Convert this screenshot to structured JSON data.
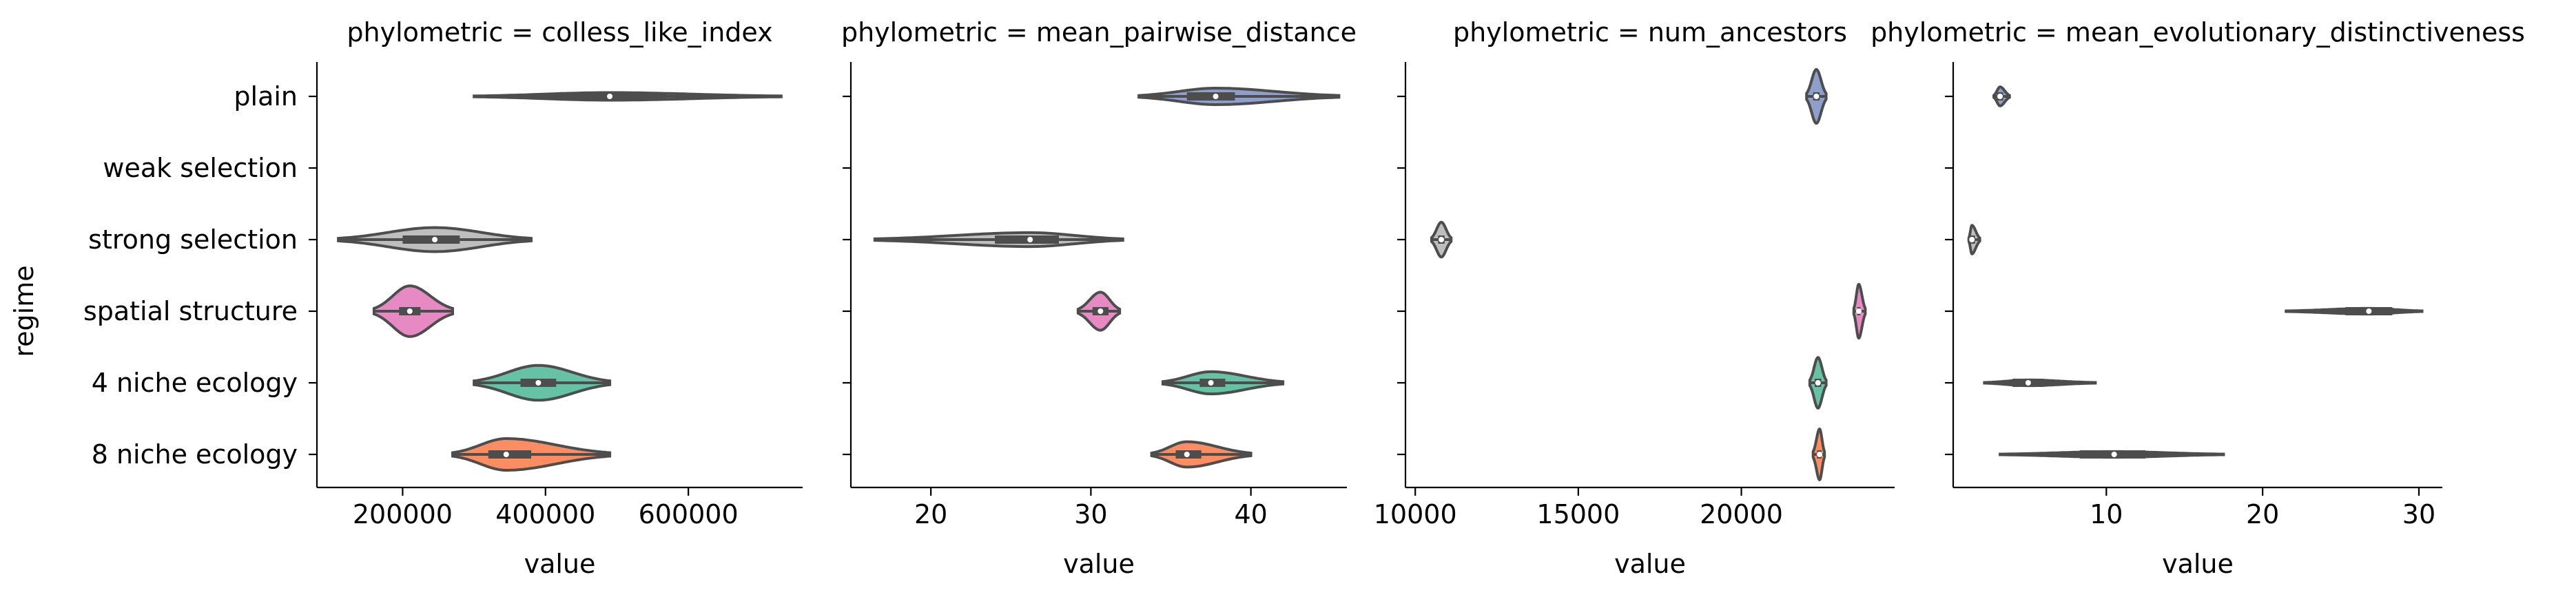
{
  "chart_data": {
    "type": "violin",
    "orientation": "horizontal",
    "ylabel": "regime",
    "categories": [
      "plain",
      "weak selection",
      "strong selection",
      "spatial structure",
      "4 niche ecology",
      "8 niche ecology"
    ],
    "palette": {
      "plain": "#8da0cb",
      "weak selection": "#a6d854",
      "strong selection": "#bebebe",
      "spatial structure": "#e78ac3",
      "4 niche ecology": "#66c2a5",
      "8 niche ecology": "#fc8d62"
    },
    "panels": [
      {
        "title": "phylometric = colless_like_index",
        "xlabel": "value",
        "xlim": [
          80000,
          760000
        ],
        "xticks": [
          200000,
          400000,
          600000
        ],
        "tick_labels": [
          "200000",
          "400000",
          "600000"
        ],
        "series": {
          "plain": {
            "min": 300000,
            "q1": 420000,
            "median": 490000,
            "q3": 570000,
            "max": 730000,
            "width": 0.12
          },
          "weak selection": null,
          "strong selection": {
            "min": 110000,
            "q1": 200000,
            "median": 245000,
            "q3": 280000,
            "max": 380000,
            "width": 0.38
          },
          "spatial structure": {
            "min": 160000,
            "q1": 195000,
            "median": 210000,
            "q3": 225000,
            "max": 270000,
            "width": 0.8
          },
          "4 niche ecology": {
            "min": 300000,
            "q1": 365000,
            "median": 390000,
            "q3": 415000,
            "max": 490000,
            "width": 0.55
          },
          "8 niche ecology": {
            "min": 270000,
            "q1": 320000,
            "median": 345000,
            "q3": 380000,
            "max": 490000,
            "width": 0.5
          }
        }
      },
      {
        "title": "phylometric = mean_pairwise_distance",
        "xlabel": "value",
        "xlim": [
          15,
          46
        ],
        "xticks": [
          20,
          30,
          40
        ],
        "tick_labels": [
          "20",
          "30",
          "40"
        ],
        "series": {
          "plain": {
            "min": 33,
            "q1": 36,
            "median": 37.8,
            "q3": 39,
            "max": 45.5,
            "width": 0.26
          },
          "weak selection": null,
          "strong selection": {
            "min": 16.5,
            "q1": 24,
            "median": 26.2,
            "q3": 28,
            "max": 32,
            "width": 0.22
          },
          "spatial structure": {
            "min": 29.2,
            "q1": 30.1,
            "median": 30.6,
            "q3": 31.1,
            "max": 31.8,
            "width": 0.6
          },
          "4 niche ecology": {
            "min": 34.5,
            "q1": 36.8,
            "median": 37.5,
            "q3": 38.4,
            "max": 42,
            "width": 0.35
          },
          "8 niche ecology": {
            "min": 33.8,
            "q1": 35.3,
            "median": 36,
            "q3": 36.9,
            "max": 40,
            "width": 0.4
          }
        }
      },
      {
        "title": "phylometric = num_ancestors",
        "xlabel": "value",
        "xlim": [
          9700,
          24700
        ],
        "xticks": [
          10000,
          15000,
          20000
        ],
        "tick_labels": [
          "10000",
          "15000",
          "20000"
        ],
        "series": {
          "plain": {
            "min": 22000,
            "q1": 22200,
            "median": 22300,
            "q3": 22400,
            "max": 22600,
            "width": 0.85
          },
          "weak selection": null,
          "strong selection": {
            "min": 10500,
            "q1": 10700,
            "median": 10800,
            "q3": 10900,
            "max": 11100,
            "width": 0.55
          },
          "spatial structure": {
            "min": 23450,
            "q1": 23550,
            "median": 23600,
            "q3": 23650,
            "max": 23800,
            "width": 0.85
          },
          "4 niche ecology": {
            "min": 22100,
            "q1": 22250,
            "median": 22350,
            "q3": 22450,
            "max": 22600,
            "width": 0.8
          },
          "8 niche ecology": {
            "min": 22200,
            "q1": 22320,
            "median": 22400,
            "q3": 22460,
            "max": 22550,
            "width": 0.8
          }
        }
      },
      {
        "title": "phylometric = mean_evolutionary_distinctiveness",
        "xlabel": "value",
        "xlim": [
          0.2,
          31.5
        ],
        "xticks": [
          10,
          20,
          30
        ],
        "tick_labels": [
          "10",
          "20",
          "30"
        ],
        "series": {
          "plain": {
            "min": 2.8,
            "q1": 3.0,
            "median": 3.2,
            "q3": 3.4,
            "max": 3.8,
            "width": 0.3
          },
          "weak selection": null,
          "strong selection": {
            "min": 1.2,
            "q1": 1.3,
            "median": 1.4,
            "q3": 1.6,
            "max": 1.9,
            "width": 0.45
          },
          "spatial structure": {
            "min": 21.5,
            "q1": 25.3,
            "median": 26.8,
            "q3": 28.3,
            "max": 30.2,
            "width": 0.09
          },
          "4 niche ecology": {
            "min": 2.2,
            "q1": 4.0,
            "median": 5.0,
            "q3": 6.0,
            "max": 9.3,
            "width": 0.09
          },
          "8 niche ecology": {
            "min": 3.2,
            "q1": 8.3,
            "median": 10.5,
            "q3": 12.5,
            "max": 17.5,
            "width": 0.09
          }
        }
      }
    ]
  }
}
